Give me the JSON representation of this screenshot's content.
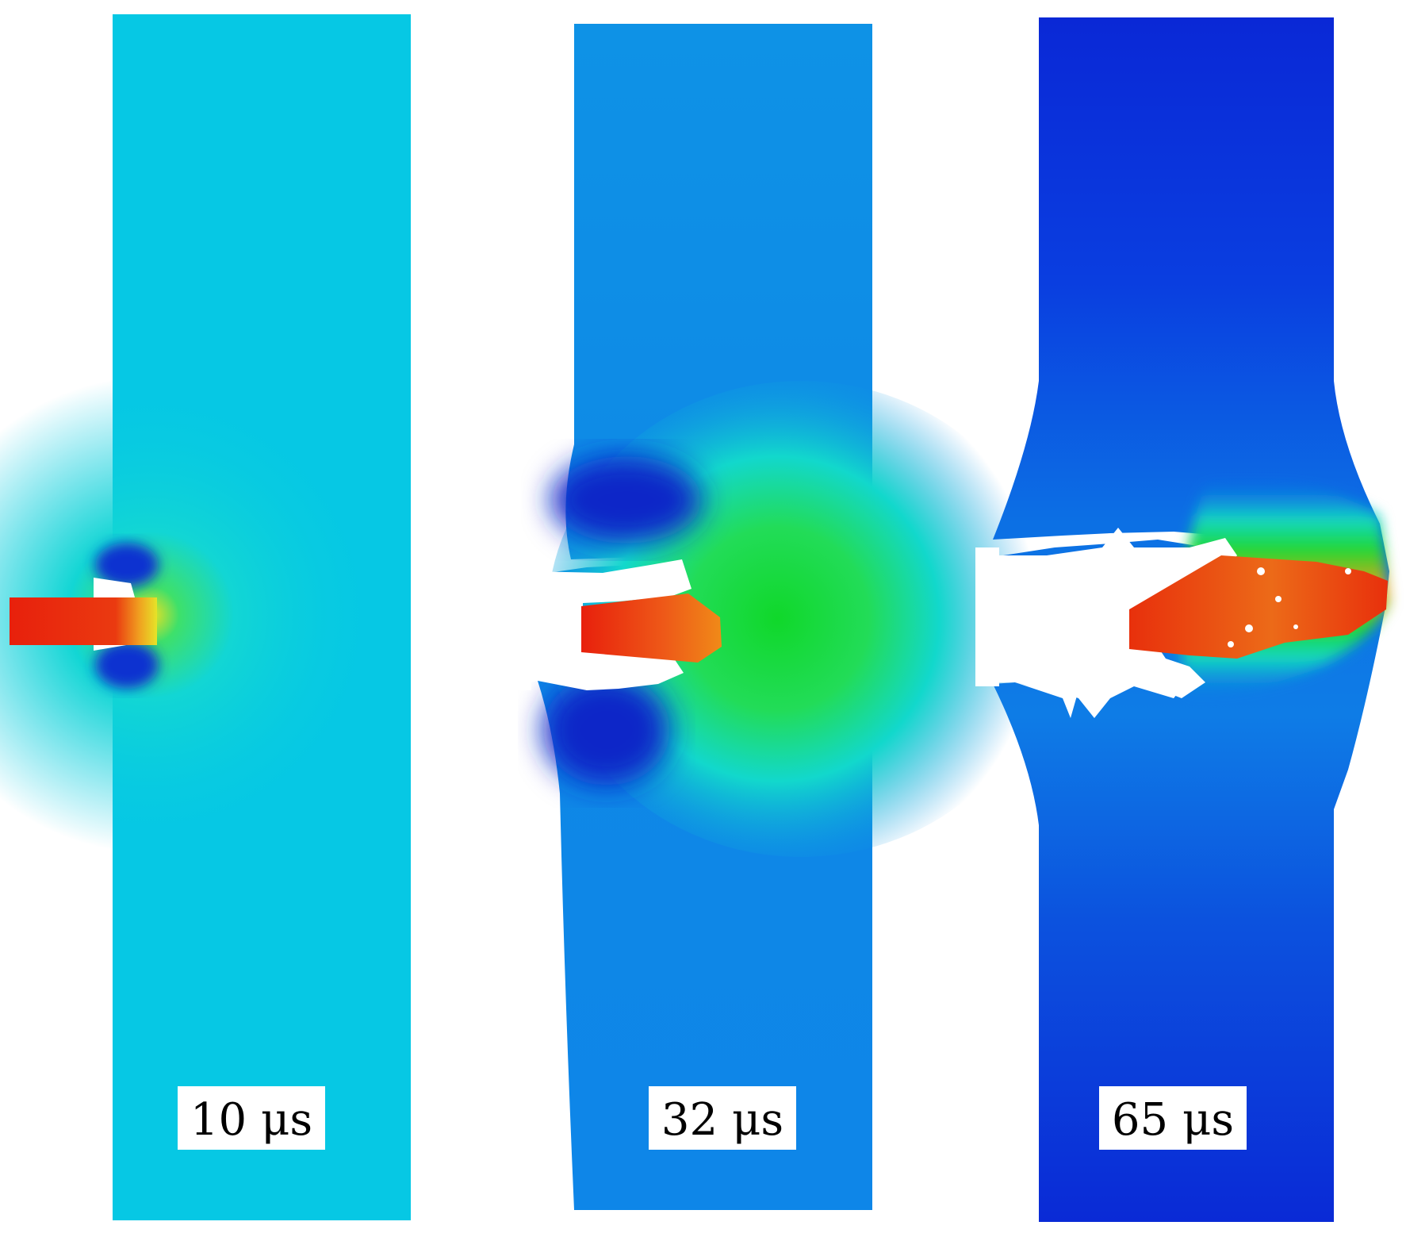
{
  "panels": [
    {
      "label": "10 μs"
    },
    {
      "label": "32 μs"
    },
    {
      "label": "65 μs"
    }
  ],
  "colors": {
    "background": "#ffffff",
    "field_light_cyan": "#06c8e4",
    "field_blue": "#0e86e6",
    "field_deep_blue": "#0a2bd8",
    "dark_blue": "#0828c8",
    "cyan": "#10dce8",
    "green": "#1ed830",
    "yellow_green": "#b4e81e",
    "orange": "#f07a18",
    "red": "#e8200c",
    "label_box": "#ffffff",
    "label_text": "#000000"
  }
}
